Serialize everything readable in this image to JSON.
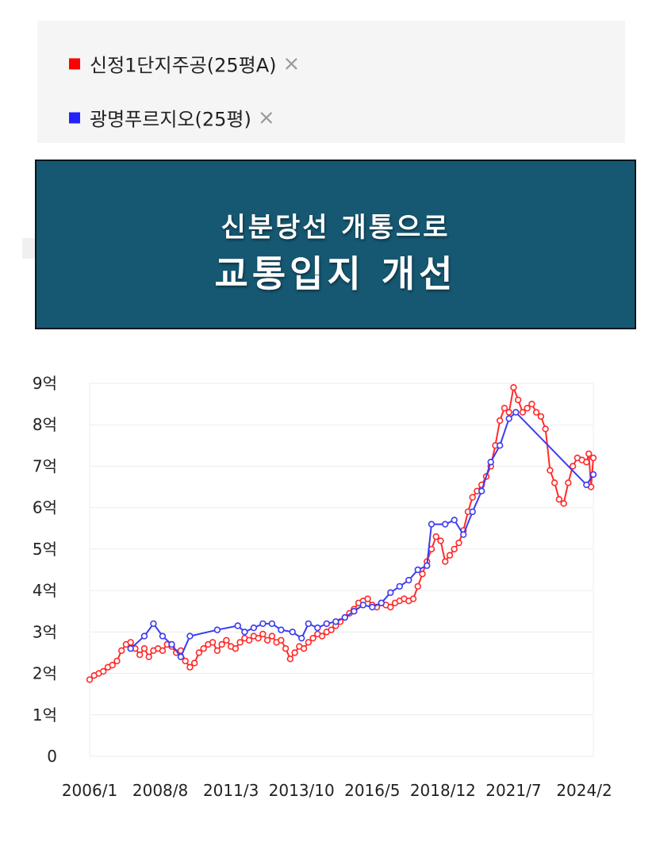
{
  "legend": {
    "items": [
      {
        "label": "신정1단지주공(25평A)",
        "color": "#ff0000",
        "remove": "×"
      },
      {
        "label": "광명푸르지오(25평)",
        "color": "#2222ff",
        "remove": "×"
      }
    ]
  },
  "banner": {
    "line1": "신분당선 개통으로",
    "line2": "교통입지 개선",
    "background": "#165872"
  },
  "chart_data": {
    "type": "line",
    "x_start": "2006/1",
    "x_end": "2024/6",
    "x_tick_labels": [
      "2006/1",
      "2008/8",
      "2011/3",
      "2013/10",
      "2016/5",
      "2018/12",
      "2021/7",
      "2024/2"
    ],
    "y_tick_labels": [
      "0",
      "1억",
      "2억",
      "3억",
      "4억",
      "5억",
      "6억",
      "7억",
      "8억",
      "9억"
    ],
    "ylim": [
      0,
      9
    ],
    "grid": true,
    "series": [
      {
        "name": "신정1단지주공(25평A)",
        "color": "#ff2a2a",
        "points": [
          [
            "2006/1",
            1.85
          ],
          [
            "2006/3",
            1.95
          ],
          [
            "2006/5",
            2.0
          ],
          [
            "2006/7",
            2.05
          ],
          [
            "2006/9",
            2.15
          ],
          [
            "2006/11",
            2.2
          ],
          [
            "2007/1",
            2.3
          ],
          [
            "2007/3",
            2.55
          ],
          [
            "2007/5",
            2.7
          ],
          [
            "2007/7",
            2.75
          ],
          [
            "2007/9",
            2.6
          ],
          [
            "2007/11",
            2.45
          ],
          [
            "2008/1",
            2.6
          ],
          [
            "2008/3",
            2.4
          ],
          [
            "2008/5",
            2.55
          ],
          [
            "2008/7",
            2.6
          ],
          [
            "2008/9",
            2.55
          ],
          [
            "2008/11",
            2.7
          ],
          [
            "2009/1",
            2.65
          ],
          [
            "2009/3",
            2.5
          ],
          [
            "2009/5",
            2.55
          ],
          [
            "2009/7",
            2.3
          ],
          [
            "2009/9",
            2.15
          ],
          [
            "2009/11",
            2.25
          ],
          [
            "2010/1",
            2.5
          ],
          [
            "2010/3",
            2.6
          ],
          [
            "2010/5",
            2.7
          ],
          [
            "2010/7",
            2.75
          ],
          [
            "2010/9",
            2.55
          ],
          [
            "2010/11",
            2.7
          ],
          [
            "2011/1",
            2.8
          ],
          [
            "2011/3",
            2.65
          ],
          [
            "2011/5",
            2.6
          ],
          [
            "2011/7",
            2.75
          ],
          [
            "2011/9",
            2.85
          ],
          [
            "2011/11",
            2.8
          ],
          [
            "2012/1",
            2.9
          ],
          [
            "2012/3",
            2.85
          ],
          [
            "2012/5",
            2.95
          ],
          [
            "2012/7",
            2.8
          ],
          [
            "2012/9",
            2.9
          ],
          [
            "2012/11",
            2.75
          ],
          [
            "2013/1",
            2.8
          ],
          [
            "2013/3",
            2.6
          ],
          [
            "2013/5",
            2.35
          ],
          [
            "2013/7",
            2.5
          ],
          [
            "2013/9",
            2.65
          ],
          [
            "2013/11",
            2.6
          ],
          [
            "2014/1",
            2.75
          ],
          [
            "2014/3",
            2.85
          ],
          [
            "2014/5",
            2.95
          ],
          [
            "2014/7",
            2.9
          ],
          [
            "2014/9",
            3.0
          ],
          [
            "2014/11",
            3.05
          ],
          [
            "2015/1",
            3.15
          ],
          [
            "2015/3",
            3.25
          ],
          [
            "2015/5",
            3.35
          ],
          [
            "2015/7",
            3.45
          ],
          [
            "2015/9",
            3.55
          ],
          [
            "2015/11",
            3.7
          ],
          [
            "2016/1",
            3.75
          ],
          [
            "2016/3",
            3.8
          ],
          [
            "2016/5",
            3.65
          ],
          [
            "2016/7",
            3.6
          ],
          [
            "2016/9",
            3.7
          ],
          [
            "2016/11",
            3.65
          ],
          [
            "2017/1",
            3.6
          ],
          [
            "2017/3",
            3.7
          ],
          [
            "2017/5",
            3.75
          ],
          [
            "2017/7",
            3.8
          ],
          [
            "2017/9",
            3.75
          ],
          [
            "2017/11",
            3.8
          ],
          [
            "2018/1",
            4.1
          ],
          [
            "2018/3",
            4.4
          ],
          [
            "2018/5",
            4.7
          ],
          [
            "2018/7",
            5.0
          ],
          [
            "2018/9",
            5.3
          ],
          [
            "2018/11",
            5.2
          ],
          [
            "2019/1",
            4.7
          ],
          [
            "2019/3",
            4.85
          ],
          [
            "2019/5",
            5.0
          ],
          [
            "2019/7",
            5.15
          ],
          [
            "2019/9",
            5.45
          ],
          [
            "2019/11",
            5.9
          ],
          [
            "2020/1",
            6.25
          ],
          [
            "2020/3",
            6.4
          ],
          [
            "2020/5",
            6.55
          ],
          [
            "2020/7",
            6.75
          ],
          [
            "2020/9",
            7.0
          ],
          [
            "2020/11",
            7.5
          ],
          [
            "2021/1",
            8.1
          ],
          [
            "2021/3",
            8.4
          ],
          [
            "2021/5",
            8.3
          ],
          [
            "2021/7",
            8.9
          ],
          [
            "2021/9",
            8.6
          ],
          [
            "2021/11",
            8.3
          ],
          [
            "2022/1",
            8.4
          ],
          [
            "2022/3",
            8.5
          ],
          [
            "2022/5",
            8.3
          ],
          [
            "2022/7",
            8.2
          ],
          [
            "2022/9",
            7.9
          ],
          [
            "2022/11",
            6.9
          ],
          [
            "2023/1",
            6.6
          ],
          [
            "2023/3",
            6.2
          ],
          [
            "2023/5",
            6.1
          ],
          [
            "2023/7",
            6.6
          ],
          [
            "2023/9",
            7.0
          ],
          [
            "2023/11",
            7.2
          ],
          [
            "2024/1",
            7.15
          ],
          [
            "2024/3",
            7.1
          ],
          [
            "2024/4",
            7.3
          ],
          [
            "2024/5",
            6.5
          ],
          [
            "2024/6",
            7.2
          ]
        ]
      },
      {
        "name": "광명푸르지오(25평)",
        "color": "#3b3bf0",
        "points": [
          [
            "2007/7",
            2.6
          ],
          [
            "2008/1",
            2.9
          ],
          [
            "2008/5",
            3.2
          ],
          [
            "2008/9",
            2.9
          ],
          [
            "2009/1",
            2.7
          ],
          [
            "2009/5",
            2.4
          ],
          [
            "2009/9",
            2.9
          ],
          [
            "2010/9",
            3.05
          ],
          [
            "2011/6",
            3.15
          ],
          [
            "2011/9",
            3.0
          ],
          [
            "2012/1",
            3.1
          ],
          [
            "2012/5",
            3.2
          ],
          [
            "2012/9",
            3.2
          ],
          [
            "2013/1",
            3.05
          ],
          [
            "2013/6",
            3.0
          ],
          [
            "2013/10",
            2.85
          ],
          [
            "2014/1",
            3.2
          ],
          [
            "2014/5",
            3.1
          ],
          [
            "2014/9",
            3.2
          ],
          [
            "2015/1",
            3.25
          ],
          [
            "2015/5",
            3.35
          ],
          [
            "2015/9",
            3.5
          ],
          [
            "2016/1",
            3.65
          ],
          [
            "2016/5",
            3.6
          ],
          [
            "2016/9",
            3.7
          ],
          [
            "2017/1",
            3.95
          ],
          [
            "2017/5",
            4.1
          ],
          [
            "2017/9",
            4.25
          ],
          [
            "2018/1",
            4.5
          ],
          [
            "2018/5",
            4.6
          ],
          [
            "2018/7",
            5.6
          ],
          [
            "2019/1",
            5.6
          ],
          [
            "2019/5",
            5.7
          ],
          [
            "2019/9",
            5.35
          ],
          [
            "2020/1",
            5.9
          ],
          [
            "2020/5",
            6.4
          ],
          [
            "2020/9",
            7.1
          ],
          [
            "2021/1",
            7.5
          ],
          [
            "2021/5",
            8.15
          ],
          [
            "2021/8",
            8.3
          ],
          [
            "2024/3",
            6.55
          ],
          [
            "2024/6",
            6.8
          ]
        ]
      }
    ]
  }
}
